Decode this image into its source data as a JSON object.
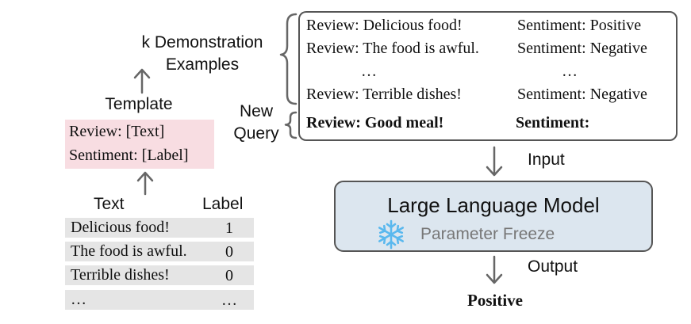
{
  "left": {
    "demonstration_label_line1": "k Demonstration",
    "demonstration_label_line2": "Examples",
    "template_label": "Template",
    "template": {
      "line1": "Review: [Text]",
      "line2": "Sentiment: [Label]"
    },
    "table": {
      "header_text": "Text",
      "header_label": "Label",
      "rows": [
        {
          "text": "Delicious food!",
          "label": "1"
        },
        {
          "text": "The food is awful.",
          "label": "0"
        },
        {
          "text": "Terrible dishes!",
          "label": "0"
        },
        {
          "text": "…",
          "label": "…"
        }
      ]
    }
  },
  "new_query_label_line1": "New",
  "new_query_label_line2": "Query",
  "prompt": {
    "demos": [
      {
        "review": "Review: Delicious food!",
        "sentiment": "Sentiment: Positive"
      },
      {
        "review": "Review: The food is awful.",
        "sentiment": "Sentiment: Negative"
      },
      {
        "review": "…",
        "sentiment": "…"
      },
      {
        "review": "Review: Terrible dishes!",
        "sentiment": "Sentiment: Negative"
      }
    ],
    "query_review": "Review: Good meal!",
    "query_sentiment": "Sentiment:"
  },
  "flow": {
    "input_label": "Input",
    "output_label": "Output",
    "result": "Positive"
  },
  "model": {
    "title": "Large Language Model",
    "freeze_text": "Parameter Freeze",
    "freeze_icon": "snowflake-icon"
  },
  "colors": {
    "template_bg": "#f8dde2",
    "table_row_bg": "#e5e5e5",
    "model_bg": "#dce6ef",
    "snowflake": "#5ab8ee"
  }
}
